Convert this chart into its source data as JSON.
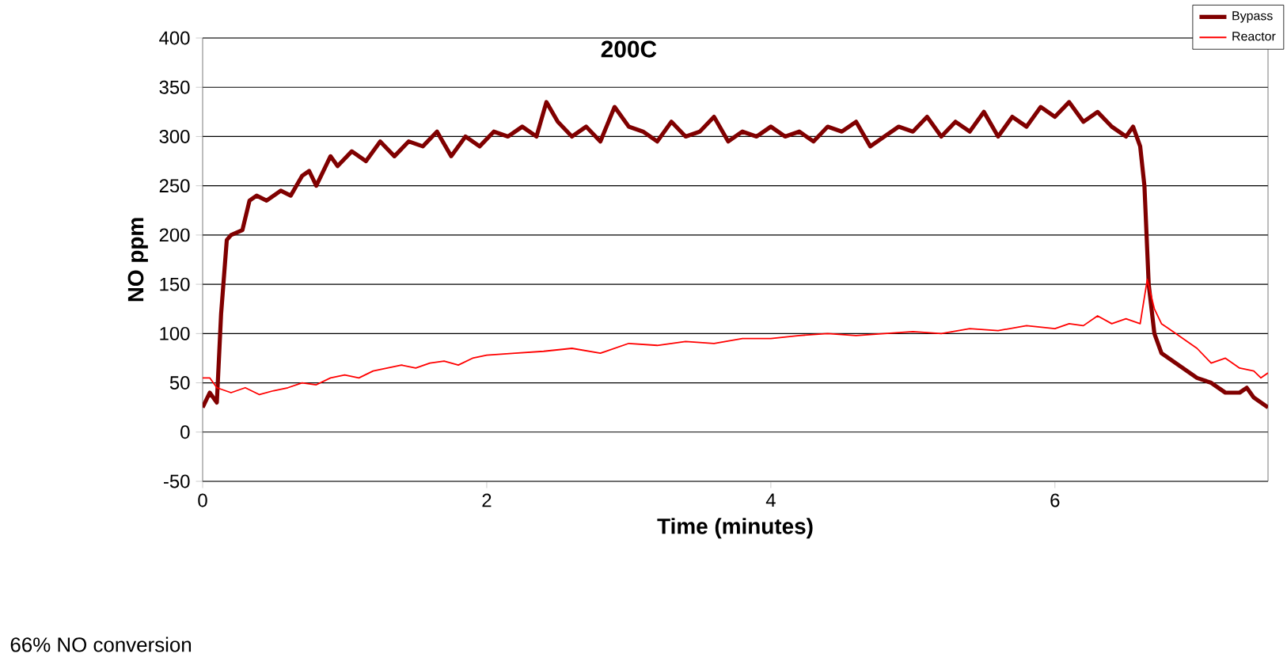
{
  "chart_data": {
    "type": "line",
    "title": "200C",
    "xlabel": "Time (minutes)",
    "ylabel": "NO ppm",
    "annotations": [
      "66%  NO conversion"
    ],
    "xlim": [
      0,
      7.5
    ],
    "xticks": [
      0,
      2,
      4,
      6
    ],
    "ylim": [
      -50,
      400
    ],
    "yticks": [
      -50,
      0,
      50,
      100,
      150,
      200,
      250,
      300,
      350,
      400
    ],
    "grid": "y",
    "legend": "top right",
    "line_style": "solid",
    "marker": "none",
    "series": [
      {
        "name": "Bypass",
        "color": "#800000",
        "x": [
          0,
          0.05,
          0.1,
          0.13,
          0.17,
          0.2,
          0.28,
          0.33,
          0.38,
          0.45,
          0.55,
          0.62,
          0.7,
          0.75,
          0.8,
          0.9,
          0.95,
          1.05,
          1.15,
          1.25,
          1.35,
          1.45,
          1.55,
          1.65,
          1.75,
          1.85,
          1.95,
          2.05,
          2.15,
          2.25,
          2.35,
          2.42,
          2.5,
          2.6,
          2.7,
          2.8,
          2.9,
          3.0,
          3.1,
          3.2,
          3.3,
          3.4,
          3.5,
          3.6,
          3.7,
          3.8,
          3.9,
          4.0,
          4.1,
          4.2,
          4.3,
          4.4,
          4.5,
          4.6,
          4.7,
          4.8,
          4.9,
          5.0,
          5.1,
          5.2,
          5.3,
          5.4,
          5.5,
          5.6,
          5.7,
          5.8,
          5.9,
          6.0,
          6.1,
          6.2,
          6.3,
          6.4,
          6.5,
          6.55,
          6.6,
          6.63,
          6.66,
          6.7,
          6.75,
          6.8,
          6.9,
          7.0,
          7.1,
          7.2,
          7.3,
          7.35,
          7.4,
          7.5
        ],
        "values": [
          25,
          40,
          30,
          120,
          195,
          200,
          205,
          235,
          240,
          235,
          245,
          240,
          260,
          265,
          250,
          280,
          270,
          285,
          275,
          295,
          280,
          295,
          290,
          305,
          280,
          300,
          290,
          305,
          300,
          310,
          300,
          335,
          315,
          300,
          310,
          295,
          330,
          310,
          305,
          295,
          315,
          300,
          305,
          320,
          295,
          305,
          300,
          310,
          300,
          305,
          295,
          310,
          305,
          315,
          290,
          300,
          310,
          305,
          320,
          300,
          315,
          305,
          325,
          300,
          320,
          310,
          330,
          320,
          335,
          315,
          325,
          310,
          300,
          310,
          290,
          250,
          150,
          100,
          80,
          75,
          65,
          55,
          50,
          40,
          40,
          45,
          35,
          25
        ]
      },
      {
        "name": "Reactor",
        "color": "#ff0000",
        "x": [
          0,
          0.05,
          0.1,
          0.2,
          0.3,
          0.4,
          0.5,
          0.6,
          0.7,
          0.8,
          0.9,
          1.0,
          1.1,
          1.2,
          1.3,
          1.4,
          1.5,
          1.6,
          1.7,
          1.8,
          1.9,
          2.0,
          2.2,
          2.4,
          2.6,
          2.8,
          3.0,
          3.2,
          3.4,
          3.6,
          3.8,
          4.0,
          4.2,
          4.4,
          4.6,
          4.8,
          5.0,
          5.2,
          5.4,
          5.6,
          5.8,
          6.0,
          6.1,
          6.2,
          6.3,
          6.4,
          6.5,
          6.6,
          6.65,
          6.7,
          6.75,
          6.8,
          6.9,
          7.0,
          7.1,
          7.2,
          7.3,
          7.4,
          7.45,
          7.5
        ],
        "values": [
          55,
          55,
          45,
          40,
          45,
          38,
          42,
          45,
          50,
          48,
          55,
          58,
          55,
          62,
          65,
          68,
          65,
          70,
          72,
          68,
          75,
          78,
          80,
          82,
          85,
          80,
          90,
          88,
          92,
          90,
          95,
          95,
          98,
          100,
          98,
          100,
          102,
          100,
          105,
          103,
          108,
          105,
          110,
          108,
          118,
          110,
          115,
          110,
          155,
          125,
          110,
          105,
          95,
          85,
          70,
          75,
          65,
          62,
          55,
          60
        ]
      }
    ]
  }
}
